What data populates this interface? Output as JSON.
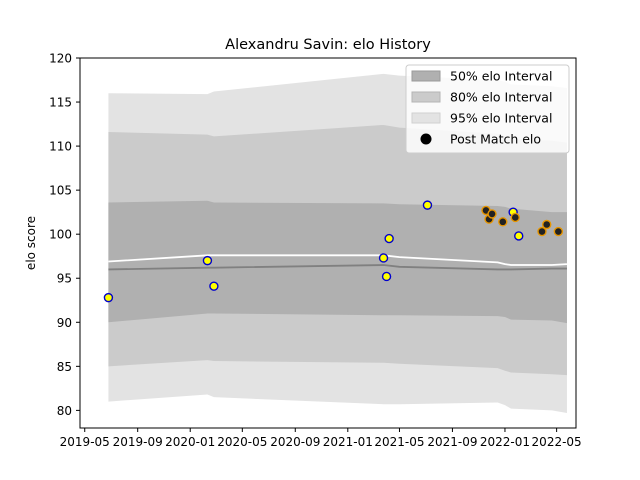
{
  "chart_data": {
    "type": "line",
    "title": "Alexandru Savin: elo History",
    "xlabel": "",
    "ylabel": "elo score",
    "xlim": [
      "2019-04-20",
      "2022-06-15"
    ],
    "ylim": [
      78,
      120
    ],
    "x_ticks": [
      "2019-05",
      "2019-09",
      "2020-01",
      "2020-05",
      "2020-09",
      "2021-01",
      "2021-05",
      "2021-09",
      "2022-01",
      "2022-05"
    ],
    "y_ticks": [
      80,
      85,
      90,
      95,
      100,
      105,
      110,
      115,
      120
    ],
    "grid": false,
    "legend": {
      "placement": "top-right",
      "entries": [
        "50% elo Interval",
        "80% elo Interval",
        "95% elo Interval",
        "Post Match elo"
      ]
    },
    "bands": [
      {
        "name": "95% elo Interval",
        "color": "#e3e3e3",
        "x": [
          "2019-06-25",
          "2020-02-10",
          "2020-02-25",
          "2021-03-25",
          "2021-05-01",
          "2021-12-15",
          "2022-01-01",
          "2022-01-15",
          "2022-04-20",
          "2022-05-25"
        ],
        "upper": [
          116.0,
          115.9,
          116.2,
          118.2,
          118.0,
          117.5,
          117.3,
          117.0,
          116.8,
          116.6
        ],
        "lower": [
          81.0,
          81.8,
          81.5,
          80.7,
          80.7,
          80.9,
          80.6,
          80.2,
          80.0,
          79.7
        ]
      },
      {
        "name": "80% elo Interval",
        "color": "#cbcbcb",
        "x": [
          "2019-06-25",
          "2020-02-10",
          "2020-02-25",
          "2021-03-25",
          "2021-05-01",
          "2021-12-15",
          "2022-01-01",
          "2022-01-15",
          "2022-04-20",
          "2022-05-25"
        ],
        "upper": [
          111.6,
          111.3,
          111.1,
          112.4,
          112.1,
          111.4,
          111.1,
          110.8,
          110.6,
          110.4
        ],
        "lower": [
          85.0,
          85.7,
          85.6,
          85.4,
          85.3,
          84.8,
          84.5,
          84.3,
          84.1,
          84.0
        ]
      },
      {
        "name": "50% elo Interval",
        "color": "#b0b0b0",
        "x": [
          "2019-06-25",
          "2020-02-10",
          "2020-02-25",
          "2021-03-25",
          "2021-05-01",
          "2021-12-15",
          "2022-01-01",
          "2022-01-15",
          "2022-04-20",
          "2022-05-25"
        ],
        "upper": [
          103.6,
          103.8,
          103.6,
          103.5,
          103.4,
          103.2,
          103.1,
          102.9,
          102.5,
          102.5
        ],
        "lower": [
          90.0,
          91.0,
          91.0,
          90.8,
          90.8,
          90.7,
          90.6,
          90.3,
          90.2,
          89.9
        ]
      }
    ],
    "series": [
      {
        "name": "mean-line",
        "color": "#ffffff",
        "x": [
          "2019-06-25",
          "2020-02-10",
          "2020-02-25",
          "2021-03-25",
          "2021-05-01",
          "2021-12-15",
          "2022-01-01",
          "2022-01-15",
          "2022-04-20",
          "2022-05-25"
        ],
        "values": [
          96.9,
          97.6,
          97.6,
          97.6,
          97.4,
          96.8,
          96.6,
          96.5,
          96.5,
          96.6
        ]
      },
      {
        "name": "median-line",
        "color": "#808080",
        "x": [
          "2019-06-25",
          "2020-02-10",
          "2020-02-25",
          "2021-03-25",
          "2021-05-01",
          "2021-12-15",
          "2022-01-01",
          "2022-01-15",
          "2022-04-20",
          "2022-05-25"
        ],
        "values": [
          96.0,
          96.2,
          96.2,
          96.5,
          96.3,
          96.0,
          96.0,
          96.0,
          96.1,
          96.1
        ]
      }
    ],
    "points": {
      "name": "Post Match elo",
      "items": [
        {
          "x": "2019-06-25",
          "y": 92.8,
          "fill": "#ffff00",
          "edge": "#0000cd"
        },
        {
          "x": "2020-02-10",
          "y": 97.0,
          "fill": "#ffff00",
          "edge": "#0000cd"
        },
        {
          "x": "2020-02-25",
          "y": 94.1,
          "fill": "#ffff00",
          "edge": "#0000cd"
        },
        {
          "x": "2021-03-25",
          "y": 97.3,
          "fill": "#ffff00",
          "edge": "#0000cd"
        },
        {
          "x": "2021-04-01",
          "y": 95.2,
          "fill": "#ffff00",
          "edge": "#0000cd"
        },
        {
          "x": "2021-04-07",
          "y": 99.5,
          "fill": "#ffff00",
          "edge": "#0000cd"
        },
        {
          "x": "2021-07-05",
          "y": 103.3,
          "fill": "#ffff00",
          "edge": "#0000cd"
        },
        {
          "x": "2021-11-18",
          "y": 102.7,
          "fill": "#222222",
          "edge": "#e69500"
        },
        {
          "x": "2021-11-25",
          "y": 101.7,
          "fill": "#222222",
          "edge": "#e69500"
        },
        {
          "x": "2021-12-02",
          "y": 102.3,
          "fill": "#222222",
          "edge": "#e69500"
        },
        {
          "x": "2021-12-27",
          "y": 101.4,
          "fill": "#222222",
          "edge": "#e69500"
        },
        {
          "x": "2022-01-20",
          "y": 102.5,
          "fill": "#ffff00",
          "edge": "#0000cd"
        },
        {
          "x": "2022-01-25",
          "y": 101.9,
          "fill": "#222222",
          "edge": "#e69500"
        },
        {
          "x": "2022-02-02",
          "y": 99.8,
          "fill": "#ffff00",
          "edge": "#0000cd"
        },
        {
          "x": "2022-03-28",
          "y": 100.3,
          "fill": "#222222",
          "edge": "#e69500"
        },
        {
          "x": "2022-04-08",
          "y": 101.1,
          "fill": "#222222",
          "edge": "#e69500"
        },
        {
          "x": "2022-05-05",
          "y": 100.3,
          "fill": "#222222",
          "edge": "#e69500"
        }
      ]
    }
  }
}
